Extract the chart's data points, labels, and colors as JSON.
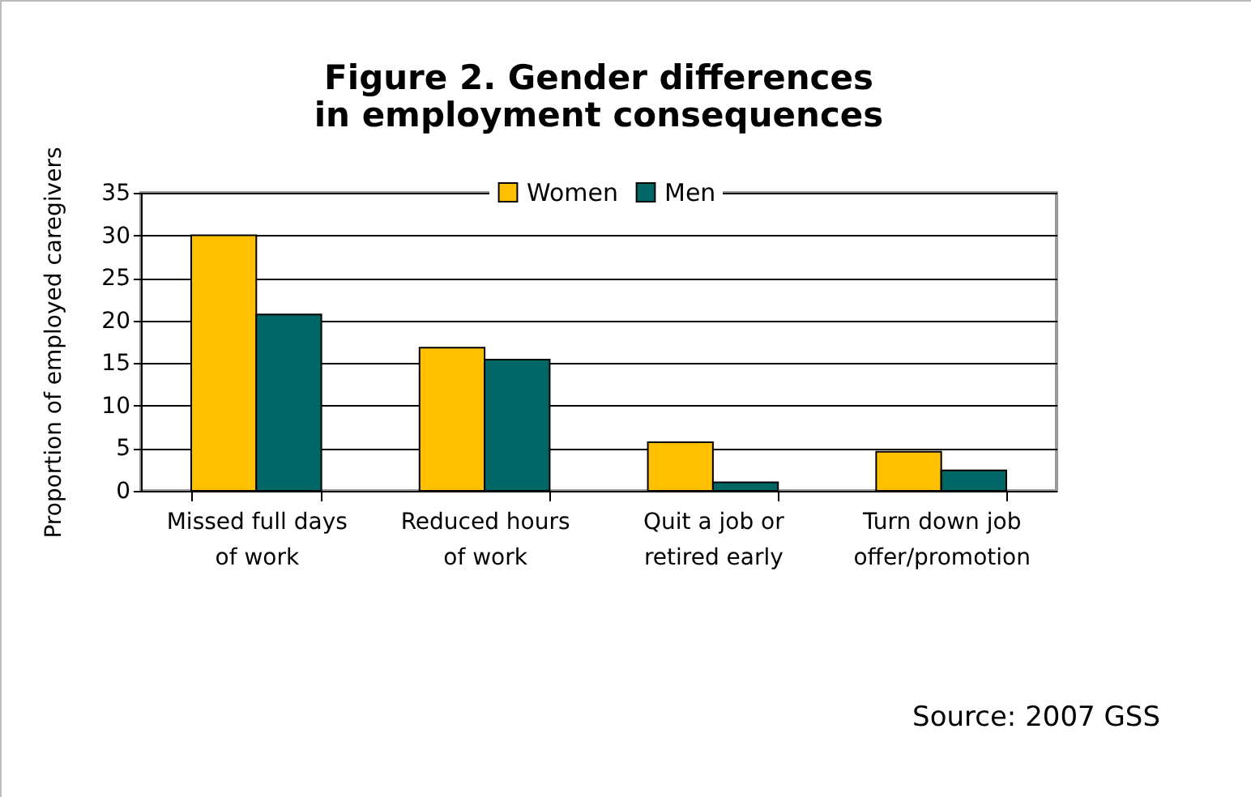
{
  "chart_data": {
    "type": "bar",
    "title": "Figure 2. Gender differences in employment consequences",
    "ylabel": "Proportion of employed caregivers",
    "categories": [
      "Missed full days of work",
      "Reduced hours of work",
      "Quit a job or retired early",
      "Turn down job offer/promotion"
    ],
    "series": [
      {
        "name": "Women",
        "color": "#ffc000",
        "values": [
          30,
          16.8,
          5.7,
          4.6
        ]
      },
      {
        "name": "Men",
        "color": "#006666",
        "values": [
          20.7,
          15.4,
          1.0,
          2.4
        ]
      }
    ],
    "ylim": [
      0,
      35
    ],
    "yticks": [
      0,
      5,
      10,
      15,
      20,
      25,
      30,
      35
    ],
    "grid": "y",
    "legend": "top",
    "annotations": [
      "Source: 2007 GSS"
    ]
  }
}
